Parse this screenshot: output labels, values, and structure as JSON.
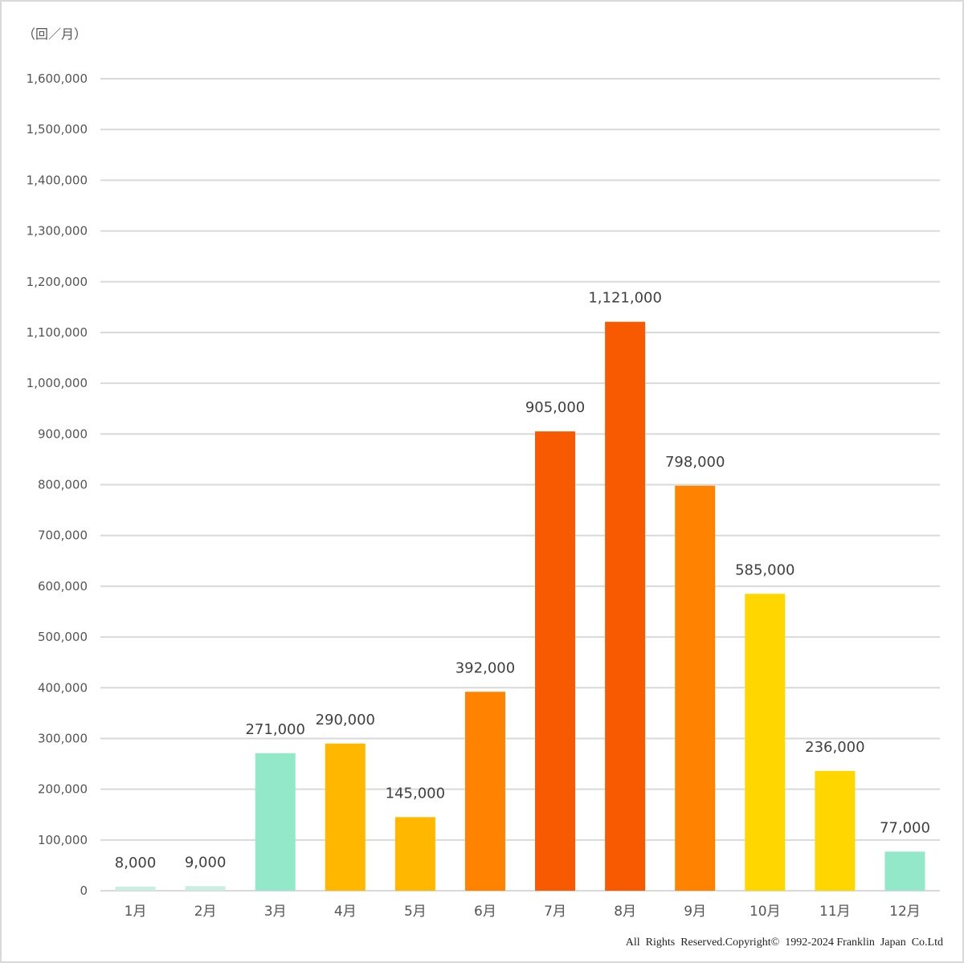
{
  "chart_data": {
    "type": "bar",
    "unit_label": "（回／月）",
    "categories": [
      "1月",
      "2月",
      "3月",
      "4月",
      "5月",
      "6月",
      "7月",
      "8月",
      "9月",
      "10月",
      "11月",
      "12月"
    ],
    "values": [
      8000,
      9000,
      271000,
      290000,
      145000,
      392000,
      905000,
      1121000,
      798000,
      585000,
      236000,
      77000
    ],
    "value_labels": [
      "8,000",
      "9,000",
      "271,000",
      "290,000",
      "145,000",
      "392,000",
      "905,000",
      "1,121,000",
      "798,000",
      "585,000",
      "236,000",
      "77,000"
    ],
    "bar_colors": [
      "#c9efe0",
      "#c9efe0",
      "#94e8ca",
      "#ffb700",
      "#ffb700",
      "#ff8300",
      "#f75a00",
      "#f75a00",
      "#ff8300",
      "#ffd600",
      "#ffd600",
      "#94e8ca"
    ],
    "ylim": [
      0,
      1600000
    ],
    "yticks": [
      0,
      100000,
      200000,
      300000,
      400000,
      500000,
      600000,
      700000,
      800000,
      900000,
      1000000,
      1100000,
      1200000,
      1300000,
      1400000,
      1500000,
      1600000
    ],
    "ytick_labels": [
      "0",
      "100,000",
      "200,000",
      "300,000",
      "400,000",
      "500,000",
      "600,000",
      "700,000",
      "800,000",
      "900,000",
      "1,000,000",
      "1,100,000",
      "1,200,000",
      "1,300,000",
      "1,400,000",
      "1,500,000",
      "1,600,000"
    ],
    "grid": true,
    "legend": "none"
  },
  "footer": {
    "copyright": "All  Rights  Reserved.Copyright©  1992-2024 Franklin  Japan  Co.Ltd"
  }
}
